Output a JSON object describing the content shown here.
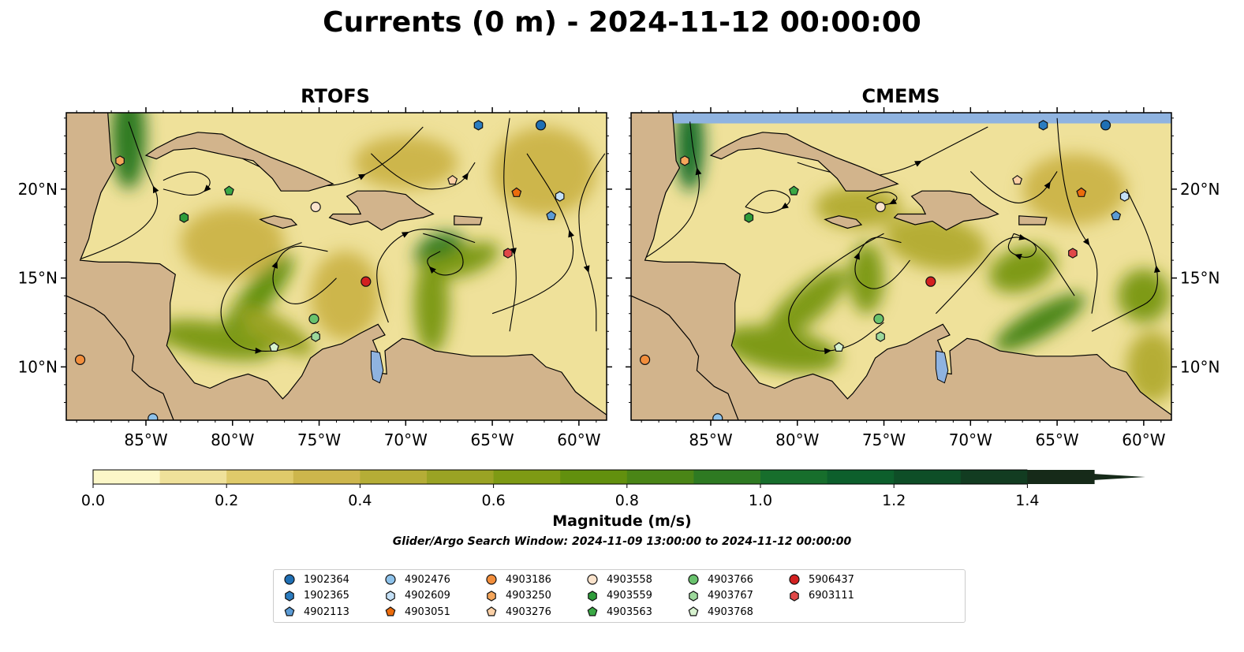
{
  "title": "Currents (0 m) - 2024-11-12 00:00:00",
  "panels": [
    {
      "name": "RTOFS"
    },
    {
      "name": "CMEMS"
    }
  ],
  "lon_ticks": [
    "85°W",
    "80°W",
    "75°W",
    "70°W",
    "65°W",
    "60°W"
  ],
  "lat_ticks": [
    "20°N",
    "15°N",
    "10°N"
  ],
  "extent": {
    "lon_min": -89.6,
    "lon_max": -58.4,
    "lat_min": 7.0,
    "lat_max": 24.3
  },
  "colors": {
    "land": "#d2b48c",
    "water_blue": "#8fb3e0",
    "speed_low": "#fbf3c2",
    "speed_mid": "#c8b84a",
    "speed_high": "#6b9e1f",
    "speed_max": "#0b5a2a"
  },
  "colorbar": {
    "label": "Magnitude (m/s)",
    "ticks": [
      "0.0",
      "0.2",
      "0.4",
      "0.6",
      "0.8",
      "1.0",
      "1.2",
      "1.4"
    ],
    "levels": [
      0.0,
      0.1,
      0.2,
      0.3,
      0.4,
      0.5,
      0.6,
      0.7,
      0.8,
      0.9,
      1.0,
      1.1,
      1.2,
      1.3,
      1.4
    ],
    "colors": [
      "#fcf7c8",
      "#efe19a",
      "#dfca6a",
      "#cdb64c",
      "#b5ad36",
      "#9aa324",
      "#7e9a14",
      "#62900e",
      "#4a8516",
      "#2e7a22",
      "#176e2c",
      "#0d5f2c",
      "#0e4e27",
      "#123c21",
      "#162a19"
    ],
    "extend": "max"
  },
  "search_window": "Glider/Argo Search Window: 2024-11-09 13:00:00 to 2024-11-12 00:00:00",
  "platforms": [
    {
      "id": "1902364",
      "marker": "circle",
      "color": "#1f6fb4",
      "lon": -62.2,
      "lat": 23.6
    },
    {
      "id": "1902365",
      "marker": "hexagon",
      "color": "#2b7cc0",
      "lon": -65.8,
      "lat": 23.6
    },
    {
      "id": "4902113",
      "marker": "pentagon",
      "color": "#5b9bd5",
      "lon": -61.6,
      "lat": 18.5
    },
    {
      "id": "4902476",
      "marker": "circle",
      "color": "#8ec2ea",
      "lon": -84.6,
      "lat": 7.1
    },
    {
      "id": "4902609",
      "marker": "hexagon",
      "color": "#c4e0f6",
      "lon": -61.1,
      "lat": 19.6
    },
    {
      "id": "4903051",
      "marker": "pentagon",
      "color": "#ec6c0c",
      "lon": -63.6,
      "lat": 19.8
    },
    {
      "id": "4903186",
      "marker": "circle",
      "color": "#f28e3c",
      "lon": -88.8,
      "lat": 10.4
    },
    {
      "id": "4903250",
      "marker": "hexagon",
      "color": "#f5a65b",
      "lon": -86.5,
      "lat": 21.6
    },
    {
      "id": "4903276",
      "marker": "pentagon",
      "color": "#fbd0a6",
      "lon": -67.3,
      "lat": 20.5
    },
    {
      "id": "4903558",
      "marker": "circle",
      "color": "#fbe3cc",
      "lon": -75.2,
      "lat": 19.0
    },
    {
      "id": "4903559",
      "marker": "hexagon",
      "color": "#2e9c3a",
      "lon": -82.8,
      "lat": 18.4
    },
    {
      "id": "4903563",
      "marker": "pentagon",
      "color": "#3aa845",
      "lon": -80.2,
      "lat": 19.9
    },
    {
      "id": "4903766",
      "marker": "circle",
      "color": "#69c26d",
      "lon": -75.3,
      "lat": 12.7
    },
    {
      "id": "4903767",
      "marker": "hexagon",
      "color": "#9cd89b",
      "lon": -75.2,
      "lat": 11.7
    },
    {
      "id": "4903768",
      "marker": "pentagon",
      "color": "#d7f2cf",
      "lon": -77.6,
      "lat": 11.1
    },
    {
      "id": "5906437",
      "marker": "circle",
      "color": "#d32020",
      "lon": -72.3,
      "lat": 14.8
    },
    {
      "id": "6903111",
      "marker": "hexagon",
      "color": "#e04848",
      "lon": -64.1,
      "lat": 16.4
    }
  ]
}
